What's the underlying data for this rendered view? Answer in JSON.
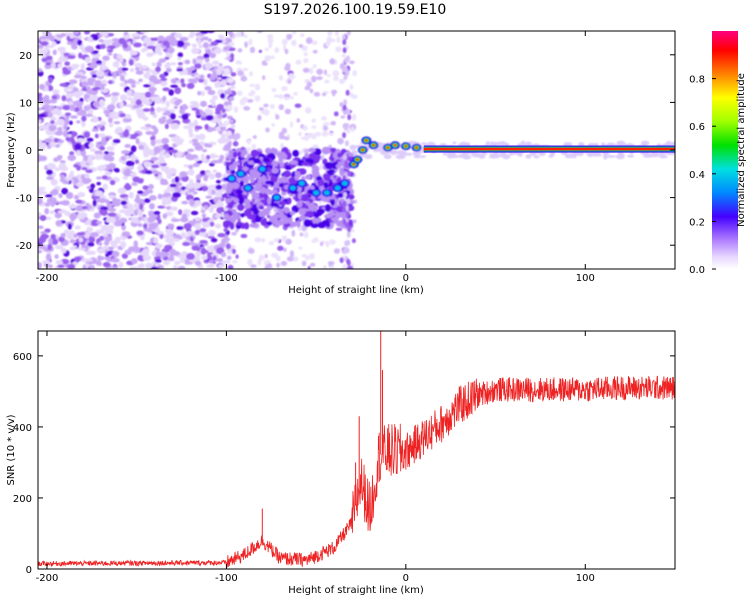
{
  "title": "S197.2026.100.19.59.E10",
  "chart_data": [
    {
      "type": "heatmap",
      "xlabel": "Height of straight line (km)",
      "ylabel": "Frequency (Hz)",
      "xlim": [
        -205,
        150
      ],
      "ylim": [
        -25,
        25
      ],
      "xticks": [
        -200,
        -100,
        0,
        100
      ],
      "yticks": [
        -20,
        -10,
        0,
        10,
        20
      ],
      "colorbar": {
        "label": "Normalized spectral amplitude",
        "range": [
          0,
          1
        ],
        "ticks": [
          0.0,
          0.2,
          0.4,
          0.6,
          0.8
        ]
      },
      "features": [
        {
          "region": "noise",
          "x_range": [
            -205,
            -100
          ],
          "description": "scattered low-amplitude speckle"
        },
        {
          "region": "tone-blobs",
          "points": [
            {
              "x": -97,
              "y": -6
            },
            {
              "x": -92,
              "y": -5
            },
            {
              "x": -88,
              "y": -8
            },
            {
              "x": -80,
              "y": -4
            },
            {
              "x": -72,
              "y": -10
            },
            {
              "x": -63,
              "y": -8
            },
            {
              "x": -58,
              "y": -7
            },
            {
              "x": -50,
              "y": -9
            },
            {
              "x": -44,
              "y": -9
            },
            {
              "x": -38,
              "y": -8
            },
            {
              "x": -34,
              "y": -7
            },
            {
              "x": -29,
              "y": -3
            },
            {
              "x": -27,
              "y": -2
            },
            {
              "x": -24,
              "y": 0
            },
            {
              "x": -22,
              "y": 2
            },
            {
              "x": -18,
              "y": 1
            },
            {
              "x": -10,
              "y": 0.5
            },
            {
              "x": -6,
              "y": 1
            },
            {
              "x": 0,
              "y": 0.8
            },
            {
              "x": 6,
              "y": 0.5
            }
          ]
        },
        {
          "region": "carrier-line",
          "x_range": [
            10,
            150
          ],
          "y": 0.2,
          "amplitude": 1.0
        }
      ]
    },
    {
      "type": "line",
      "xlabel": "Height of straight line (km)",
      "ylabel": "SNR (10 * v/v)",
      "xlim": [
        -205,
        150
      ],
      "ylim": [
        0,
        670
      ],
      "xticks": [
        -200,
        -100,
        0,
        100
      ],
      "yticks": [
        0,
        200,
        400,
        600
      ],
      "color": "#ee2222",
      "baseline": [
        {
          "x": -205,
          "y": 15
        },
        {
          "x": -100,
          "y": 18
        },
        {
          "x": -90,
          "y": 40
        },
        {
          "x": -80,
          "y": 80
        },
        {
          "x": -70,
          "y": 30
        },
        {
          "x": -55,
          "y": 25
        },
        {
          "x": -40,
          "y": 60
        },
        {
          "x": -30,
          "y": 130
        },
        {
          "x": -25,
          "y": 250
        },
        {
          "x": -20,
          "y": 160
        },
        {
          "x": -15,
          "y": 320
        },
        {
          "x": -10,
          "y": 330
        },
        {
          "x": 0,
          "y": 330
        },
        {
          "x": 10,
          "y": 370
        },
        {
          "x": 20,
          "y": 410
        },
        {
          "x": 30,
          "y": 460
        },
        {
          "x": 40,
          "y": 490
        },
        {
          "x": 50,
          "y": 505
        },
        {
          "x": 60,
          "y": 505
        },
        {
          "x": 80,
          "y": 505
        },
        {
          "x": 100,
          "y": 505
        },
        {
          "x": 120,
          "y": 510
        },
        {
          "x": 150,
          "y": 510
        }
      ],
      "spikes": [
        {
          "x": -80,
          "y": 170
        },
        {
          "x": -28,
          "y": 300
        },
        {
          "x": -26,
          "y": 430
        },
        {
          "x": -14,
          "y": 670
        },
        {
          "x": -13,
          "y": 560
        }
      ]
    }
  ]
}
